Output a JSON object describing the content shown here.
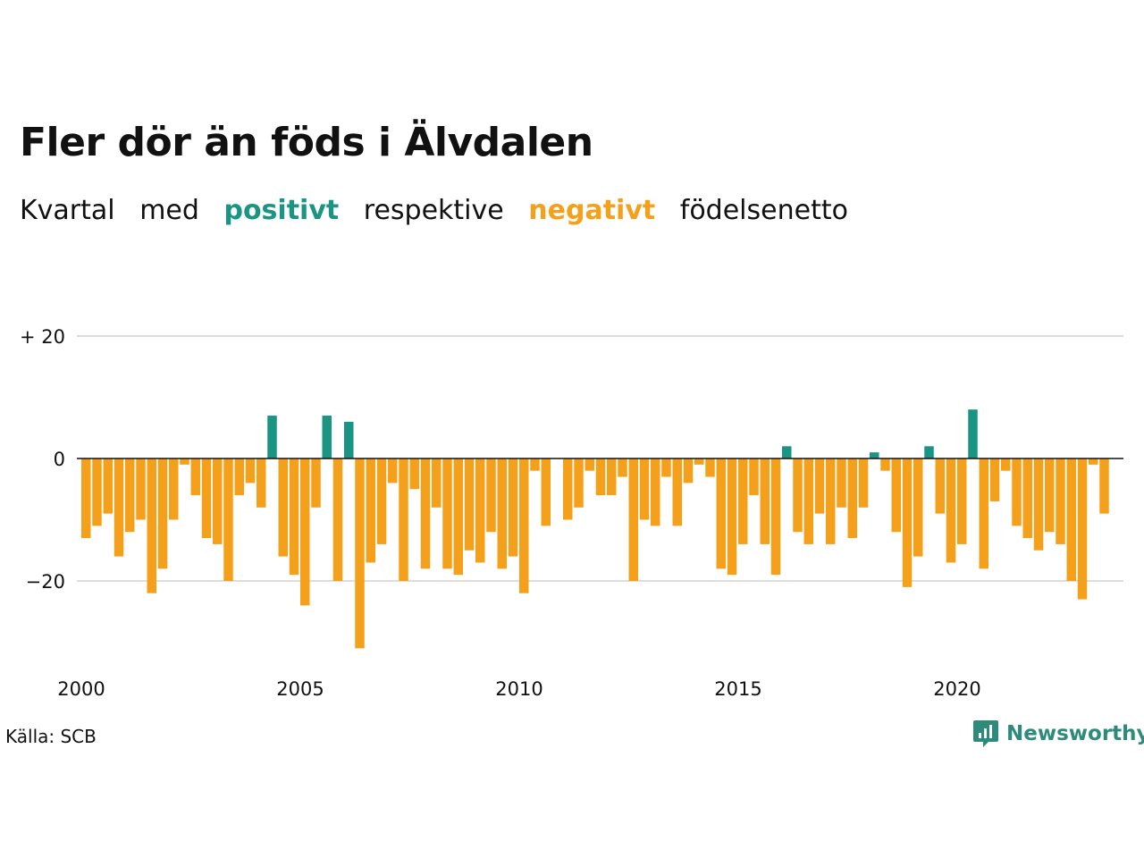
{
  "title": "Fler dör än föds i Älvdalen",
  "subtitle": {
    "w1": "Kvartal",
    "w2": "med",
    "positive": "positivt",
    "w3": "respektive",
    "negative": "negativt",
    "w4": "födelsenetto"
  },
  "source": "Källa: SCB",
  "brand": "Newsworthy",
  "colors": {
    "positive": "#1a9483",
    "negative": "#f5a01a",
    "grid": "#dddddd",
    "text": "#111111"
  },
  "chart_data": {
    "type": "bar",
    "x_start": "2000 Q1",
    "x_ticks": [
      "2000",
      "2005",
      "2010",
      "2015",
      "2020"
    ],
    "y_ticks": [
      "+ 20",
      "0",
      "−20"
    ],
    "ylim": [
      -33,
      23
    ],
    "grid": true,
    "values": [
      -13,
      -11,
      -9,
      -16,
      -12,
      -10,
      -22,
      -18,
      -10,
      -1,
      -6,
      -13,
      -14,
      -20,
      -6,
      -4,
      -8,
      7,
      -16,
      -19,
      -24,
      -8,
      7,
      -20,
      6,
      -31,
      -17,
      -14,
      -4,
      -20,
      -5,
      -18,
      -8,
      -18,
      -19,
      -15,
      -17,
      -12,
      -18,
      -16,
      -22,
      -2,
      -11,
      0,
      -10,
      -8,
      -2,
      -6,
      -6,
      -3,
      -20,
      -10,
      -11,
      -3,
      -11,
      -4,
      -1,
      -3,
      -18,
      -19,
      -14,
      -6,
      -14,
      -19,
      2,
      -12,
      -14,
      -9,
      -14,
      -8,
      -13,
      -8,
      1,
      -2,
      -12,
      -21,
      -16,
      2,
      -9,
      -17,
      -14,
      8,
      -18,
      -7,
      -2,
      -11,
      -13,
      -15,
      -12,
      -14,
      -20,
      -23,
      -1,
      -9
    ]
  }
}
